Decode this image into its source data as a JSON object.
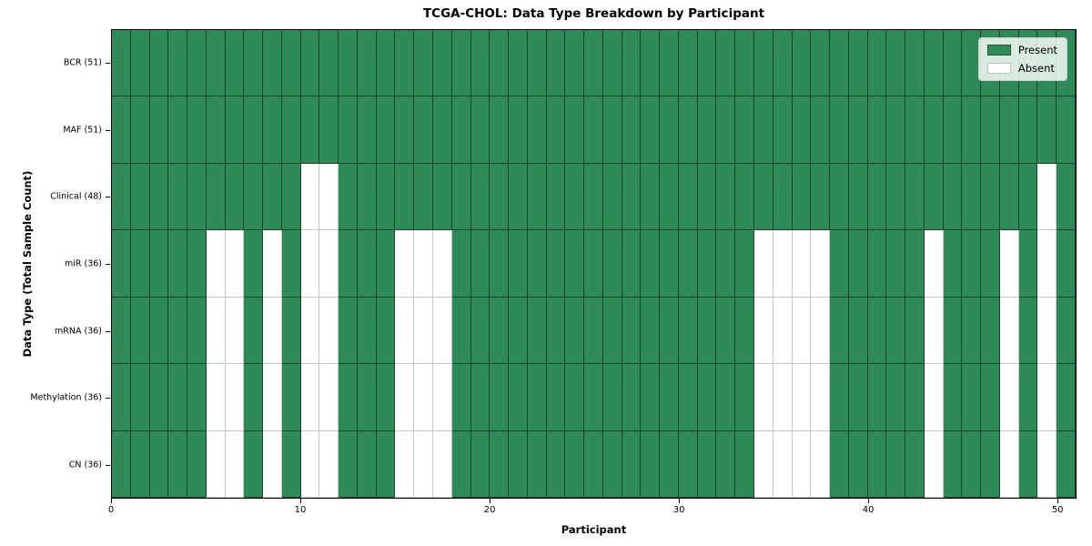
{
  "chart_data": {
    "type": "heatmap",
    "title": "TCGA-CHOL: Data Type Breakdown by Participant",
    "xlabel": "Participant",
    "ylabel": "Data Type (Total Sample Count)",
    "x_range": [
      0,
      51
    ],
    "n_participants": 51,
    "x_ticks": [
      0,
      10,
      20,
      30,
      40,
      50
    ],
    "grid": true,
    "legend_position": "upper right",
    "legend": {
      "items": [
        {
          "label": "Present",
          "value": "present",
          "color": "#2e8b57"
        },
        {
          "label": "Absent",
          "value": "absent",
          "color": "#ffffff"
        }
      ]
    },
    "colors": {
      "present": "#2e8b57",
      "absent": "#ffffff",
      "edge_on_present": "rgba(0,0,0,0.50)",
      "edge_on_absent": "#c6c6c6",
      "plot_border": "#000000"
    },
    "rows": [
      {
        "label": "BCR (51)",
        "name": "BCR",
        "present_count": 51,
        "absent_participants": []
      },
      {
        "label": "MAF (51)",
        "name": "MAF",
        "present_count": 51,
        "absent_participants": []
      },
      {
        "label": "Clinical (48)",
        "name": "Clinical",
        "present_count": 48,
        "absent_participants": [
          10,
          11,
          49
        ]
      },
      {
        "label": "miR (36)",
        "name": "miR",
        "present_count": 36,
        "absent_participants": [
          5,
          6,
          8,
          10,
          11,
          15,
          16,
          17,
          34,
          35,
          36,
          37,
          43,
          47,
          49
        ]
      },
      {
        "label": "mRNA (36)",
        "name": "mRNA",
        "present_count": 36,
        "absent_participants": [
          5,
          6,
          8,
          10,
          11,
          15,
          16,
          17,
          34,
          35,
          36,
          37,
          43,
          47,
          49
        ]
      },
      {
        "label": "Methylation (36)",
        "name": "Methylation",
        "present_count": 36,
        "absent_participants": [
          5,
          6,
          8,
          10,
          11,
          15,
          16,
          17,
          34,
          35,
          36,
          37,
          43,
          47,
          49
        ]
      },
      {
        "label": "CN (36)",
        "name": "CN",
        "present_count": 36,
        "absent_participants": [
          5,
          6,
          8,
          10,
          11,
          15,
          16,
          17,
          34,
          35,
          36,
          37,
          43,
          47,
          49
        ]
      }
    ]
  }
}
